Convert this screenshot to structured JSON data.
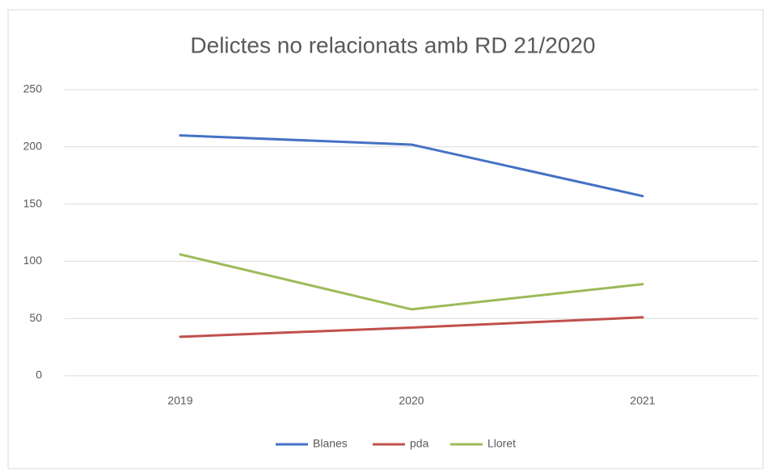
{
  "chart_data": {
    "type": "line",
    "title": "Delictes no relacionats amb RD 21/2020",
    "categories": [
      "2019",
      "2020",
      "2021"
    ],
    "series": [
      {
        "name": "Blanes",
        "color": "#4472c4",
        "values": [
          210,
          202,
          157
        ]
      },
      {
        "name": "pda",
        "color": "#c0504d",
        "values": [
          34,
          42,
          51
        ]
      },
      {
        "name": "Lloret",
        "color": "#9bbb59",
        "values": [
          106,
          58,
          80
        ]
      }
    ],
    "ylim": [
      0,
      250
    ],
    "yticks": [
      0,
      50,
      100,
      150,
      200,
      250
    ],
    "grid": true,
    "legend": "bottom"
  }
}
